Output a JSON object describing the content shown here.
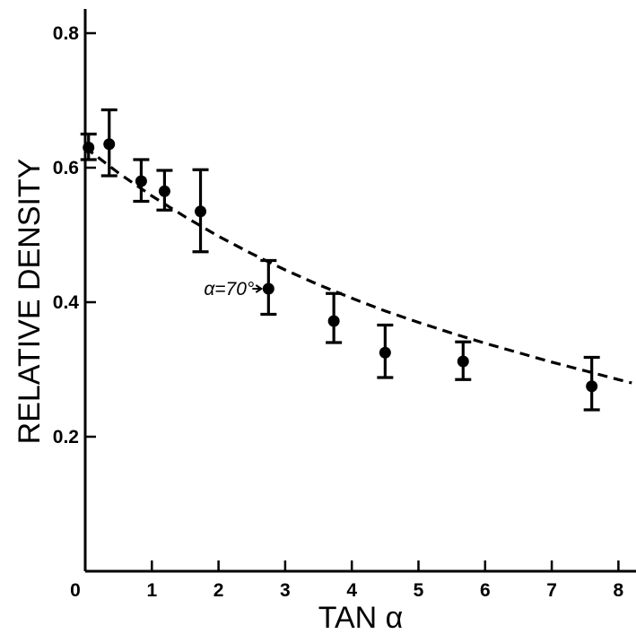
{
  "chart_data": {
    "type": "scatter",
    "xlabel": "TAN α",
    "ylabel": "RELATIVE DENSITY",
    "xlim": [
      0,
      8.2
    ],
    "ylim": [
      0,
      0.85
    ],
    "x_ticks": [
      0,
      1,
      2,
      3,
      4,
      5,
      6,
      7,
      8
    ],
    "x_tick_labels": [
      "0",
      "1",
      "2",
      "3",
      "4",
      "5",
      "6",
      "7",
      "8"
    ],
    "y_ticks": [
      0.2,
      0.4,
      0.6,
      0.8
    ],
    "y_tick_labels": [
      "0.2",
      "0.4",
      "0.6",
      "0.8"
    ],
    "grid": false,
    "points": [
      {
        "x": 0.05,
        "y": 0.63,
        "err_low": 0.612,
        "err_high": 0.65
      },
      {
        "x": 0.36,
        "y": 0.635,
        "err_low": 0.588,
        "err_high": 0.686
      },
      {
        "x": 0.84,
        "y": 0.58,
        "err_low": 0.55,
        "err_high": 0.612
      },
      {
        "x": 1.19,
        "y": 0.565,
        "err_low": 0.537,
        "err_high": 0.596
      },
      {
        "x": 1.73,
        "y": 0.535,
        "err_low": 0.475,
        "err_high": 0.597
      },
      {
        "x": 2.75,
        "y": 0.42,
        "err_low": 0.382,
        "err_high": 0.462
      },
      {
        "x": 3.73,
        "y": 0.372,
        "err_low": 0.34,
        "err_high": 0.413
      },
      {
        "x": 4.5,
        "y": 0.325,
        "err_low": 0.288,
        "err_high": 0.366
      },
      {
        "x": 5.67,
        "y": 0.312,
        "err_low": 0.285,
        "err_high": 0.341
      },
      {
        "x": 7.6,
        "y": 0.275,
        "err_low": 0.24,
        "err_high": 0.318
      }
    ],
    "fit_curve": {
      "style": "dashed",
      "x": [
        0,
        0.5,
        1,
        1.5,
        2,
        2.5,
        3,
        3.5,
        4,
        4.5,
        5,
        5.5,
        6,
        6.5,
        7,
        7.5,
        8,
        8.2
      ],
      "y": [
        0.63,
        0.592,
        0.558,
        0.527,
        0.498,
        0.472,
        0.448,
        0.426,
        0.406,
        0.387,
        0.37,
        0.354,
        0.339,
        0.325,
        0.311,
        0.298,
        0.285,
        0.28
      ]
    },
    "annotation": {
      "text": "α=70°",
      "x": 2.75,
      "y": 0.42
    }
  }
}
